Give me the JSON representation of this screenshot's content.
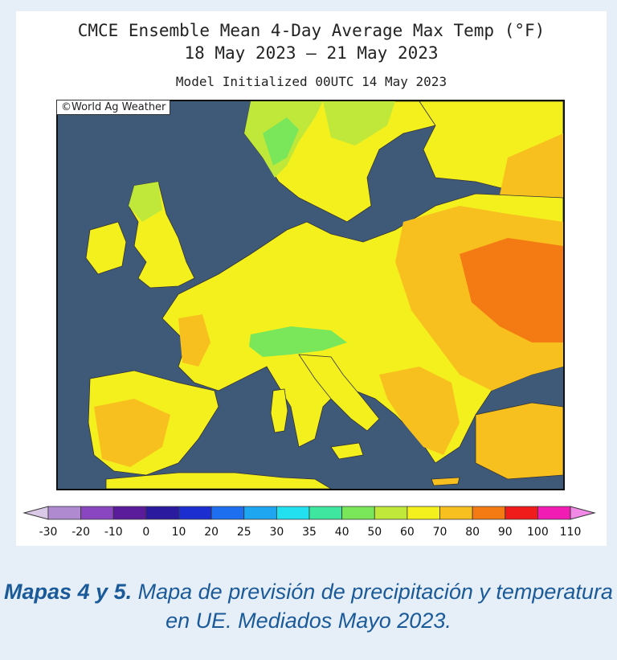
{
  "title": "CMCE Ensemble Mean 4-Day Average Max Temp (°F)",
  "subtitle": "18 May 2023 – 21 May 2023",
  "initialized": "Model Initialized 00UTC 14 May 2023",
  "credit": "©World Ag Weather",
  "legend": {
    "labels": [
      "-30",
      "-20",
      "-10",
      "0",
      "10",
      "20",
      "25",
      "30",
      "35",
      "40",
      "50",
      "60",
      "70",
      "80",
      "90",
      "100",
      "110"
    ],
    "colors": [
      "#d9c8e6",
      "#b08ad0",
      "#8a46c0",
      "#5a1c9a",
      "#2a1a9e",
      "#1c2ed0",
      "#1e6ef0",
      "#1ea6f0",
      "#22e0f0",
      "#3ee6a0",
      "#7ae65a",
      "#bfe83a",
      "#f4f01e",
      "#f8c01e",
      "#f47a14",
      "#f01c1c",
      "#f01cb4",
      "#f08ae6"
    ]
  },
  "caption": {
    "label": "Mapas 4 y 5.",
    "text": " Mapa de previsión de precipitación y temperatura en UE. Mediados Mayo 2023."
  },
  "colors": {
    "sea": "#3f5a78",
    "border": "#333333"
  }
}
